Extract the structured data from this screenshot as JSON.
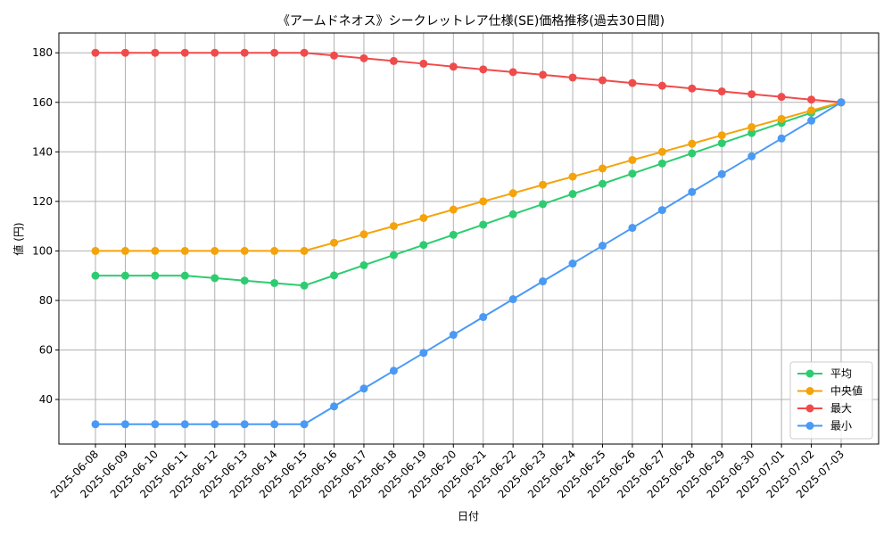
{
  "chart_data": {
    "type": "line",
    "title": "《アームドネオス》シークレットレア仕様(SE)価格推移(過去30日間)",
    "xlabel": "日付",
    "ylabel": "値 (円)",
    "ylim": [
      22,
      188
    ],
    "yticks": [
      40,
      60,
      80,
      100,
      120,
      140,
      160,
      180
    ],
    "grid": true,
    "legend_position": "bottom-right",
    "categories": [
      "2025-06-08",
      "2025-06-09",
      "2025-06-10",
      "2025-06-11",
      "2025-06-12",
      "2025-06-13",
      "2025-06-14",
      "2025-06-15",
      "2025-06-16",
      "2025-06-17",
      "2025-06-18",
      "2025-06-19",
      "2025-06-20",
      "2025-06-21",
      "2025-06-22",
      "2025-06-23",
      "2025-06-24",
      "2025-06-25",
      "2025-06-26",
      "2025-06-27",
      "2025-06-28",
      "2025-06-29",
      "2025-06-30",
      "2025-07-01",
      "2025-07-02",
      "2025-07-03"
    ],
    "series": [
      {
        "name": "平均",
        "color": "#2ecc71",
        "values": [
          90,
          90,
          90,
          90,
          89,
          88,
          87,
          86,
          90.1,
          94.2,
          98.3,
          102.4,
          106.5,
          110.6,
          114.8,
          118.9,
          123,
          127.1,
          131.2,
          135.3,
          139.4,
          143.5,
          147.6,
          151.7,
          155.8,
          160
        ]
      },
      {
        "name": "中央値",
        "color": "#f5a30a",
        "values": [
          100,
          100,
          100,
          100,
          100,
          100,
          100,
          100,
          103.3,
          106.7,
          110,
          113.3,
          116.7,
          120,
          123.3,
          126.7,
          130,
          133.3,
          136.7,
          140,
          143.3,
          146.7,
          150,
          153.3,
          156.7,
          160
        ]
      },
      {
        "name": "最大",
        "color": "#f04b4b",
        "values": [
          180,
          180,
          180,
          180,
          180,
          180,
          180,
          180,
          178.9,
          177.8,
          176.7,
          175.6,
          174.4,
          173.3,
          172.2,
          171.1,
          170,
          168.9,
          167.8,
          166.7,
          165.6,
          164.4,
          163.3,
          162.2,
          161.1,
          160
        ]
      },
      {
        "name": "最小",
        "color": "#4a9af5",
        "values": [
          30,
          30,
          30,
          30,
          30,
          30,
          30,
          30,
          37.2,
          44.4,
          51.6,
          58.8,
          66.1,
          73.3,
          80.5,
          87.7,
          94.9,
          102.1,
          109.3,
          116.5,
          123.8,
          131,
          138.2,
          145.4,
          152.6,
          160
        ]
      }
    ]
  }
}
